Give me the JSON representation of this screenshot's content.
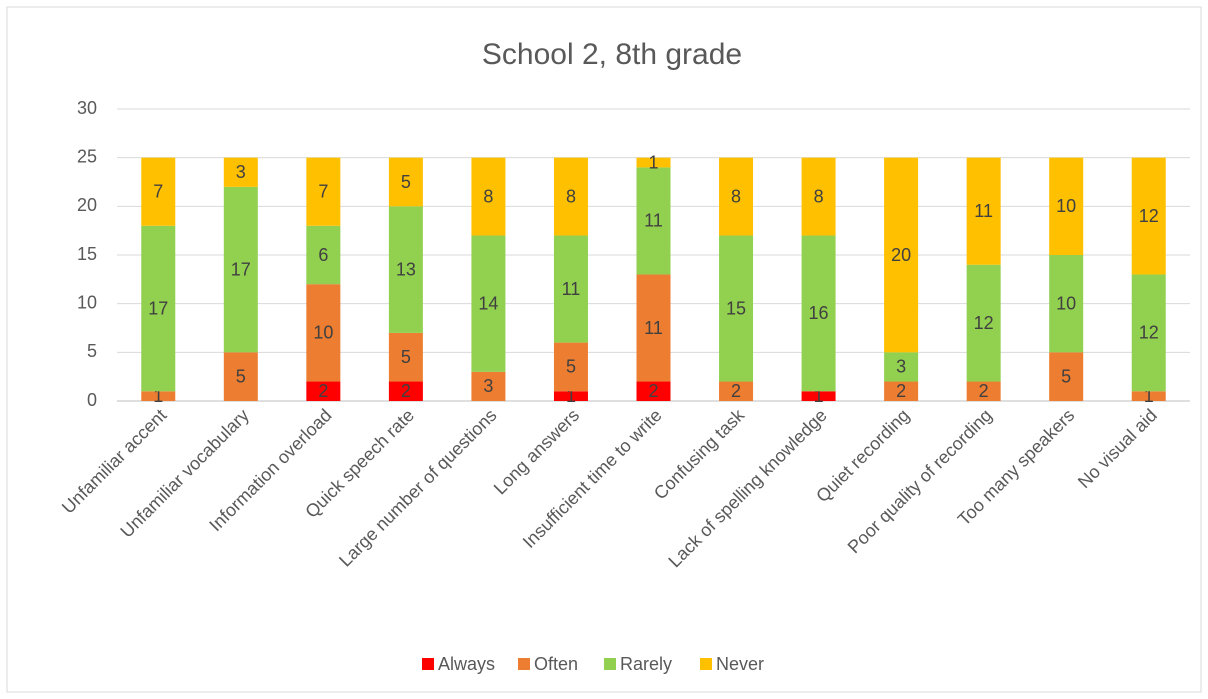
{
  "chart_data": {
    "type": "stacked_bar",
    "title": "School 2, 8th grade",
    "categories": [
      "Unfamiliar accent",
      "Unfamiliar vocabulary",
      "Information overload",
      "Quick speech rate",
      "Large number of questions",
      "Long answers",
      "Insufficient time to write",
      "Confusing task",
      "Lack of spelling knowledge",
      "Quiet recording",
      "Poor quality of recording",
      "Too many speakers",
      "No visual aid"
    ],
    "series": [
      {
        "name": "Always",
        "color": "#ff0000",
        "values": [
          null,
          null,
          2,
          2,
          null,
          1,
          2,
          null,
          1,
          null,
          null,
          null,
          null
        ]
      },
      {
        "name": "Often",
        "color": "#ed7d31",
        "values": [
          1,
          5,
          10,
          5,
          3,
          5,
          11,
          2,
          null,
          2,
          2,
          5,
          1
        ]
      },
      {
        "name": "Rarely",
        "color": "#92d050",
        "values": [
          17,
          17,
          6,
          13,
          14,
          11,
          11,
          15,
          16,
          3,
          12,
          10,
          12
        ]
      },
      {
        "name": "Never",
        "color": "#ffc000",
        "values": [
          7,
          3,
          7,
          5,
          8,
          8,
          1,
          8,
          8,
          20,
          11,
          10,
          12
        ]
      }
    ],
    "ylim": [
      0,
      30
    ],
    "yticks": [
      0,
      5,
      10,
      15,
      20,
      25,
      30
    ],
    "grid": true,
    "legend": "bottom"
  }
}
